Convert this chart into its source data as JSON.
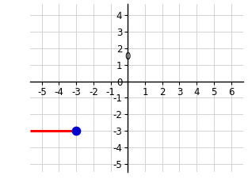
{
  "xlim": [
    -5.7,
    6.7
  ],
  "ylim": [
    -5.5,
    4.7
  ],
  "xticks": [
    -5,
    -4,
    -3,
    -2,
    -1,
    0,
    1,
    2,
    3,
    4,
    5,
    6
  ],
  "yticks": [
    -5,
    -4,
    -3,
    -2,
    -1,
    0,
    1,
    2,
    3,
    4
  ],
  "ray_y": -3,
  "endpoint_x": -3,
  "endpoint_y": -3,
  "ray_color": "#ff0000",
  "endpoint_color": "#0000cd",
  "endpoint_size": 55,
  "ray_linewidth": 2.2,
  "background_color": "#ffffff",
  "grid_color": "#cccccc",
  "axis_color": "#000000",
  "tick_fontsize": 8.5,
  "figwidth": 3.13,
  "figheight": 2.36,
  "dpi": 100
}
